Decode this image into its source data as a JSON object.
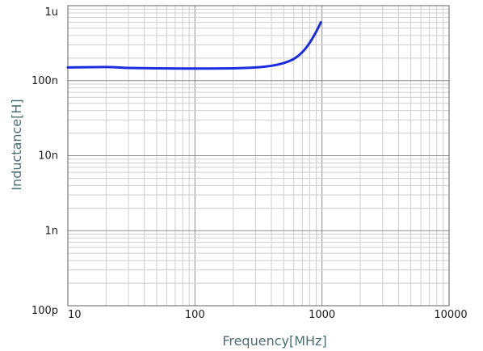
{
  "chart_data": {
    "type": "line",
    "title": "",
    "xlabel": "Frequency[MHz]",
    "ylabel": "Inductance[H]",
    "x_scale": "log",
    "y_scale": "log",
    "xlim": [
      10,
      10000
    ],
    "ylim": [
      1e-10,
      1e-06
    ],
    "grid": true,
    "x_ticks": [
      {
        "value": 10,
        "label": "10"
      },
      {
        "value": 100,
        "label": "100"
      },
      {
        "value": 1000,
        "label": "1000"
      },
      {
        "value": 10000,
        "label": "10000"
      }
    ],
    "y_ticks": [
      {
        "value": 1e-10,
        "label": "100p"
      },
      {
        "value": 1e-09,
        "label": "1n"
      },
      {
        "value": 1e-08,
        "label": "10n"
      },
      {
        "value": 1e-07,
        "label": "100n"
      },
      {
        "value": 1e-06,
        "label": "1u"
      }
    ],
    "series": [
      {
        "color": "#1a2be0",
        "points": [
          [
            10,
            1.5e-07
          ],
          [
            20,
            1.52e-07
          ],
          [
            30,
            1.48e-07
          ],
          [
            50,
            1.46e-07
          ],
          [
            100,
            1.45e-07
          ],
          [
            200,
            1.46e-07
          ],
          [
            300,
            1.5e-07
          ],
          [
            400,
            1.58e-07
          ],
          [
            500,
            1.72e-07
          ],
          [
            600,
            1.95e-07
          ],
          [
            700,
            2.4e-07
          ],
          [
            800,
            3.2e-07
          ],
          [
            900,
            4.5e-07
          ],
          [
            980,
            6e-07
          ]
        ]
      }
    ]
  }
}
